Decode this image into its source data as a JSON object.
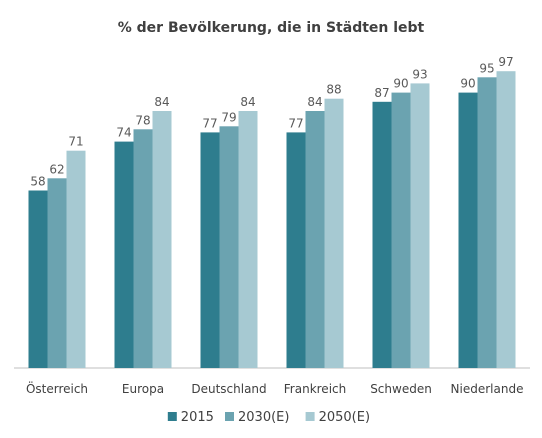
{
  "chart_data": {
    "type": "bar",
    "title": "% der Bevölkerung, die in Städten lebt",
    "categories": [
      "Österreich",
      "Europa",
      "Deutschland",
      "Frankreich",
      "Schweden",
      "Niederlande"
    ],
    "series": [
      {
        "name": "2015",
        "values": [
          58,
          74,
          77,
          77,
          87,
          90
        ],
        "color": "#2E7D8E"
      },
      {
        "name": "2030(E)",
        "values": [
          62,
          78,
          79,
          84,
          90,
          95
        ],
        "color": "#6BA3B0"
      },
      {
        "name": "2050(E)",
        "values": [
          71,
          84,
          84,
          88,
          93,
          97
        ],
        "color": "#A6C9D2"
      }
    ],
    "ylim": [
      0,
      100
    ],
    "xlabel": "",
    "ylabel": "",
    "grid": false,
    "legend_position": "bottom",
    "data_labels": true
  }
}
